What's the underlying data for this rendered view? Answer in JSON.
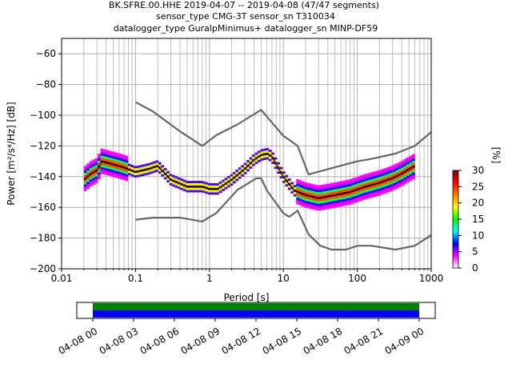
{
  "chart_data": [
    {
      "type": "heatmap",
      "title_lines": [
        "BK.SFRE.00.HHE   2019-04-07 -- 2019-04-08  (47/47 segments)",
        "sensor_type CMG-3T sensor_sn T310034",
        "datalogger_type GuralpMinimus+ datalogger_sn MINP-DF59"
      ],
      "xlabel": "Period [s]",
      "ylabel": "Power [m²/s⁴/Hz] [dB]",
      "xscale": "log",
      "xlim": [
        0.01,
        1000
      ],
      "ylim": [
        -200,
        -50
      ],
      "xticks": [
        {
          "value": 0.01,
          "label": "0.01"
        },
        {
          "value": 0.1,
          "label": "0.1"
        },
        {
          "value": 1,
          "label": "1"
        },
        {
          "value": 10,
          "label": "10"
        },
        {
          "value": 100,
          "label": "100"
        },
        {
          "value": 1000,
          "label": "1000"
        }
      ],
      "yticks": [
        -60,
        -80,
        -100,
        -120,
        -140,
        -160,
        -180,
        -200
      ],
      "grid": true,
      "colorbar": {
        "label": "[%]",
        "min": 0,
        "max": 30,
        "ticks": [
          0,
          5,
          10,
          15,
          20,
          25,
          30
        ],
        "colors": [
          "#ffffff",
          "#ff00ff",
          "#0000ff",
          "#00ffff",
          "#00ff00",
          "#ffff00",
          "#ff8000",
          "#ff0000",
          "#800000"
        ]
      },
      "series": [
        {
          "name": "NHNM",
          "color": "#666666",
          "x": [
            0.1,
            0.17,
            0.4,
            0.8,
            1.24,
            2.4,
            4.3,
            5.0,
            6.0,
            10.0,
            12.0,
            15.6,
            21.9,
            31.6,
            45.0,
            70.0,
            101.0,
            154.0,
            328.0,
            600.0,
            1000.0
          ],
          "y": [
            -91.5,
            -97.4,
            -110.5,
            -120.0,
            -113.0,
            -106.0,
            -98.5,
            -96.5,
            -101.0,
            -113.5,
            -116.0,
            -120.0,
            -138.5,
            -136.5,
            -134.5,
            -132.0,
            -130.0,
            -128.5,
            -125.0,
            -120.0,
            -111.0
          ]
        },
        {
          "name": "NLNM",
          "color": "#666666",
          "x": [
            0.1,
            0.17,
            0.4,
            0.8,
            1.24,
            2.4,
            4.3,
            5.0,
            6.0,
            10.0,
            12.0,
            15.6,
            21.9,
            31.6,
            45.0,
            70.0,
            101.0,
            154.0,
            328.0,
            600.0,
            1000.0
          ],
          "y": [
            -168.0,
            -166.7,
            -166.7,
            -169.2,
            -163.7,
            -148.6,
            -141.1,
            -141.1,
            -149.0,
            -163.8,
            -166.2,
            -162.1,
            -177.5,
            -185.0,
            -187.5,
            -187.5,
            -185.0,
            -185.0,
            -187.5,
            -185.0,
            -178.0
          ]
        },
        {
          "name": "mode",
          "color": "#000000",
          "x": [
            0.02,
            0.025,
            0.03,
            0.035,
            0.05,
            0.07,
            0.1,
            0.15,
            0.2,
            0.3,
            0.5,
            0.8,
            1.0,
            1.3,
            2.0,
            3.0,
            4.0,
            5.0,
            6.0,
            7.0,
            8.0,
            10.0,
            14.0,
            20.0,
            30.0,
            50.0,
            80.0,
            120.0,
            200.0,
            300.0,
            400.0,
            600.0
          ],
          "y": [
            -142,
            -138,
            -136,
            -130,
            -132,
            -134,
            -137,
            -135,
            -133,
            -142,
            -146.5,
            -146.5,
            -148,
            -148,
            -142,
            -135,
            -129,
            -126,
            -125,
            -127,
            -132,
            -140,
            -149,
            -152,
            -154,
            -152,
            -150,
            -147,
            -144,
            -141,
            -138,
            -133
          ]
        }
      ]
    },
    {
      "type": "timeline",
      "ticks": [
        "04-08 00",
        "04-08 03",
        "04-08 06",
        "04-08 09",
        "04-08 12",
        "04-08 15",
        "04-08 18",
        "04-08 21",
        "04-09 00"
      ],
      "bars": [
        {
          "color": "#008000",
          "start_hour": 0,
          "end_hour": 24
        },
        {
          "color": "#0000ff",
          "start_hour": 0,
          "end_hour": 24
        }
      ]
    }
  ]
}
